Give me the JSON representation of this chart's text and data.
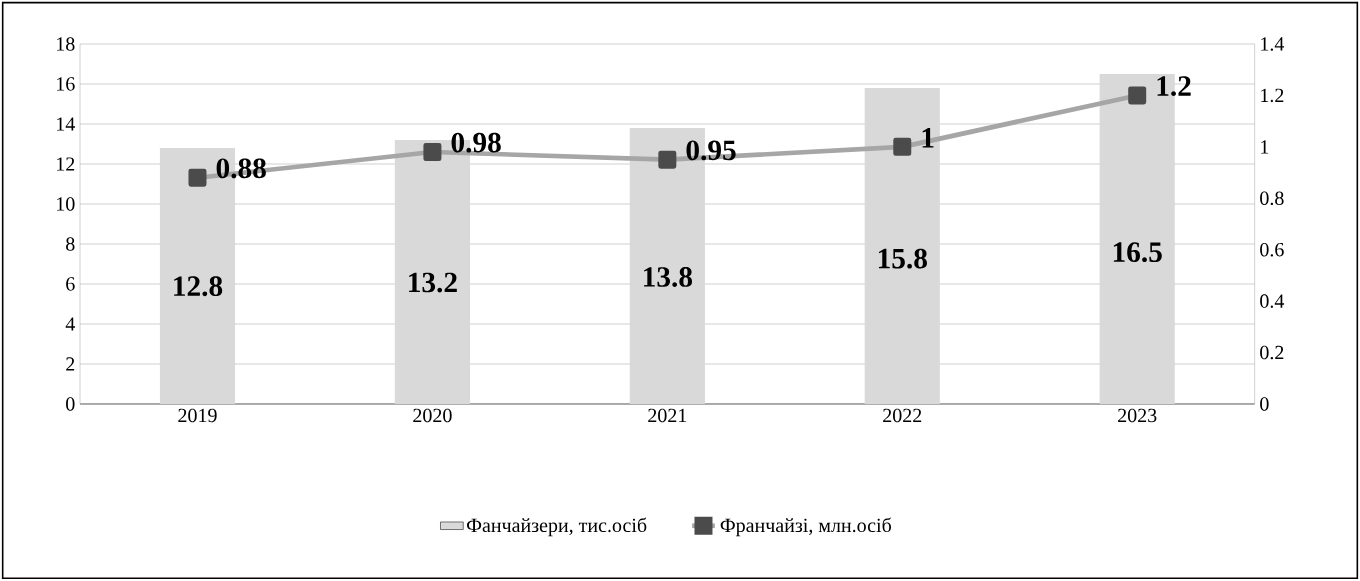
{
  "chart_data": {
    "type": "bar",
    "categories": [
      "2019",
      "2020",
      "2021",
      "2022",
      "2023"
    ],
    "series": [
      {
        "name": "Фанчайзери, тис.осіб",
        "color": "#d9d9d9",
        "values": [
          12.8,
          13.2,
          13.8,
          15.8,
          16.5
        ]
      },
      {
        "name": "Франчайзі, млн.осіб",
        "color": "#a6a6a6",
        "type": "line",
        "axis": "y2",
        "marker": "square",
        "values": [
          0.88,
          0.98,
          0.95,
          1,
          1.2
        ]
      }
    ],
    "ylim": [
      0,
      18
    ],
    "yticks": [
      0,
      2,
      4,
      6,
      8,
      10,
      12,
      14,
      16,
      18
    ],
    "y2lim": [
      0,
      1.4
    ],
    "y2ticks": [
      0,
      0.2,
      0.4,
      0.6,
      0.8,
      1,
      1.2,
      1.4
    ],
    "grid": "y",
    "legend": "bottom",
    "data_labels": true
  }
}
